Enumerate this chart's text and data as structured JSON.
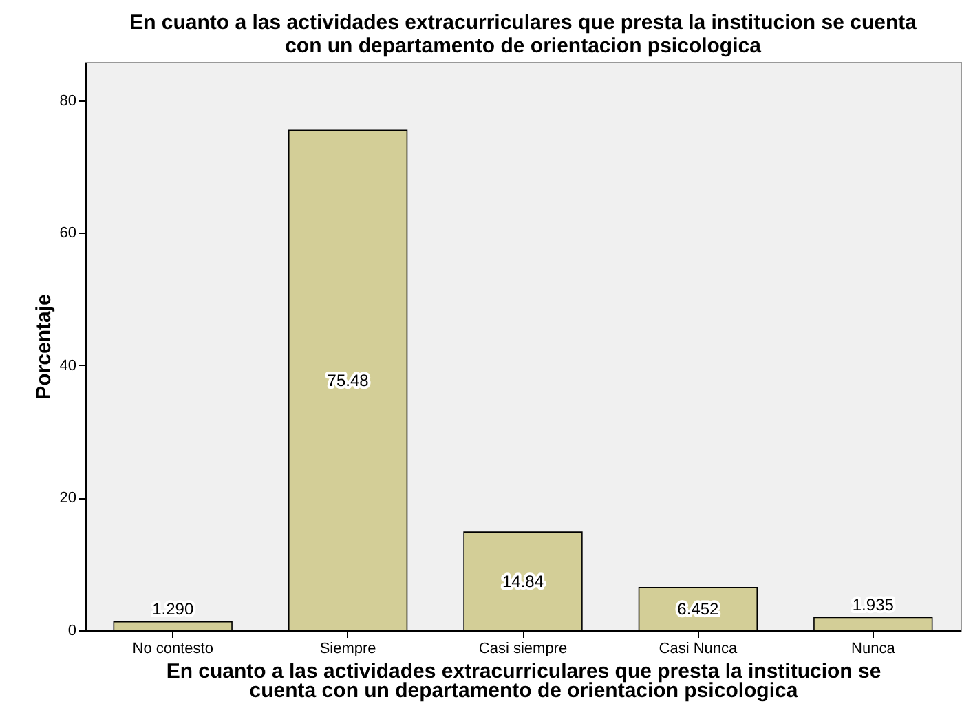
{
  "chart_data": {
    "type": "bar",
    "title": "En cuanto a las actividades extracurriculares que presta la institucion se cuenta con un departamento de orientacion psicologica",
    "xlabel": "En cuanto a las actividades extracurriculares que presta la institucion se cuenta con un departamento de orientacion psicologica",
    "ylabel": "Porcentaje",
    "categories": [
      "No contesto",
      "Siempre",
      "Casi siempre",
      "Casi Nunca",
      "Nunca"
    ],
    "values": [
      1.29,
      75.48,
      14.84,
      6.452,
      1.935
    ],
    "value_labels": [
      "1.290",
      "75.48",
      "14.84",
      "6.452",
      "1.935"
    ],
    "color": "#d3ce97",
    "ylim": [
      0,
      85.8
    ],
    "yticks": [
      0,
      20,
      40,
      60,
      80
    ],
    "grid": false
  }
}
